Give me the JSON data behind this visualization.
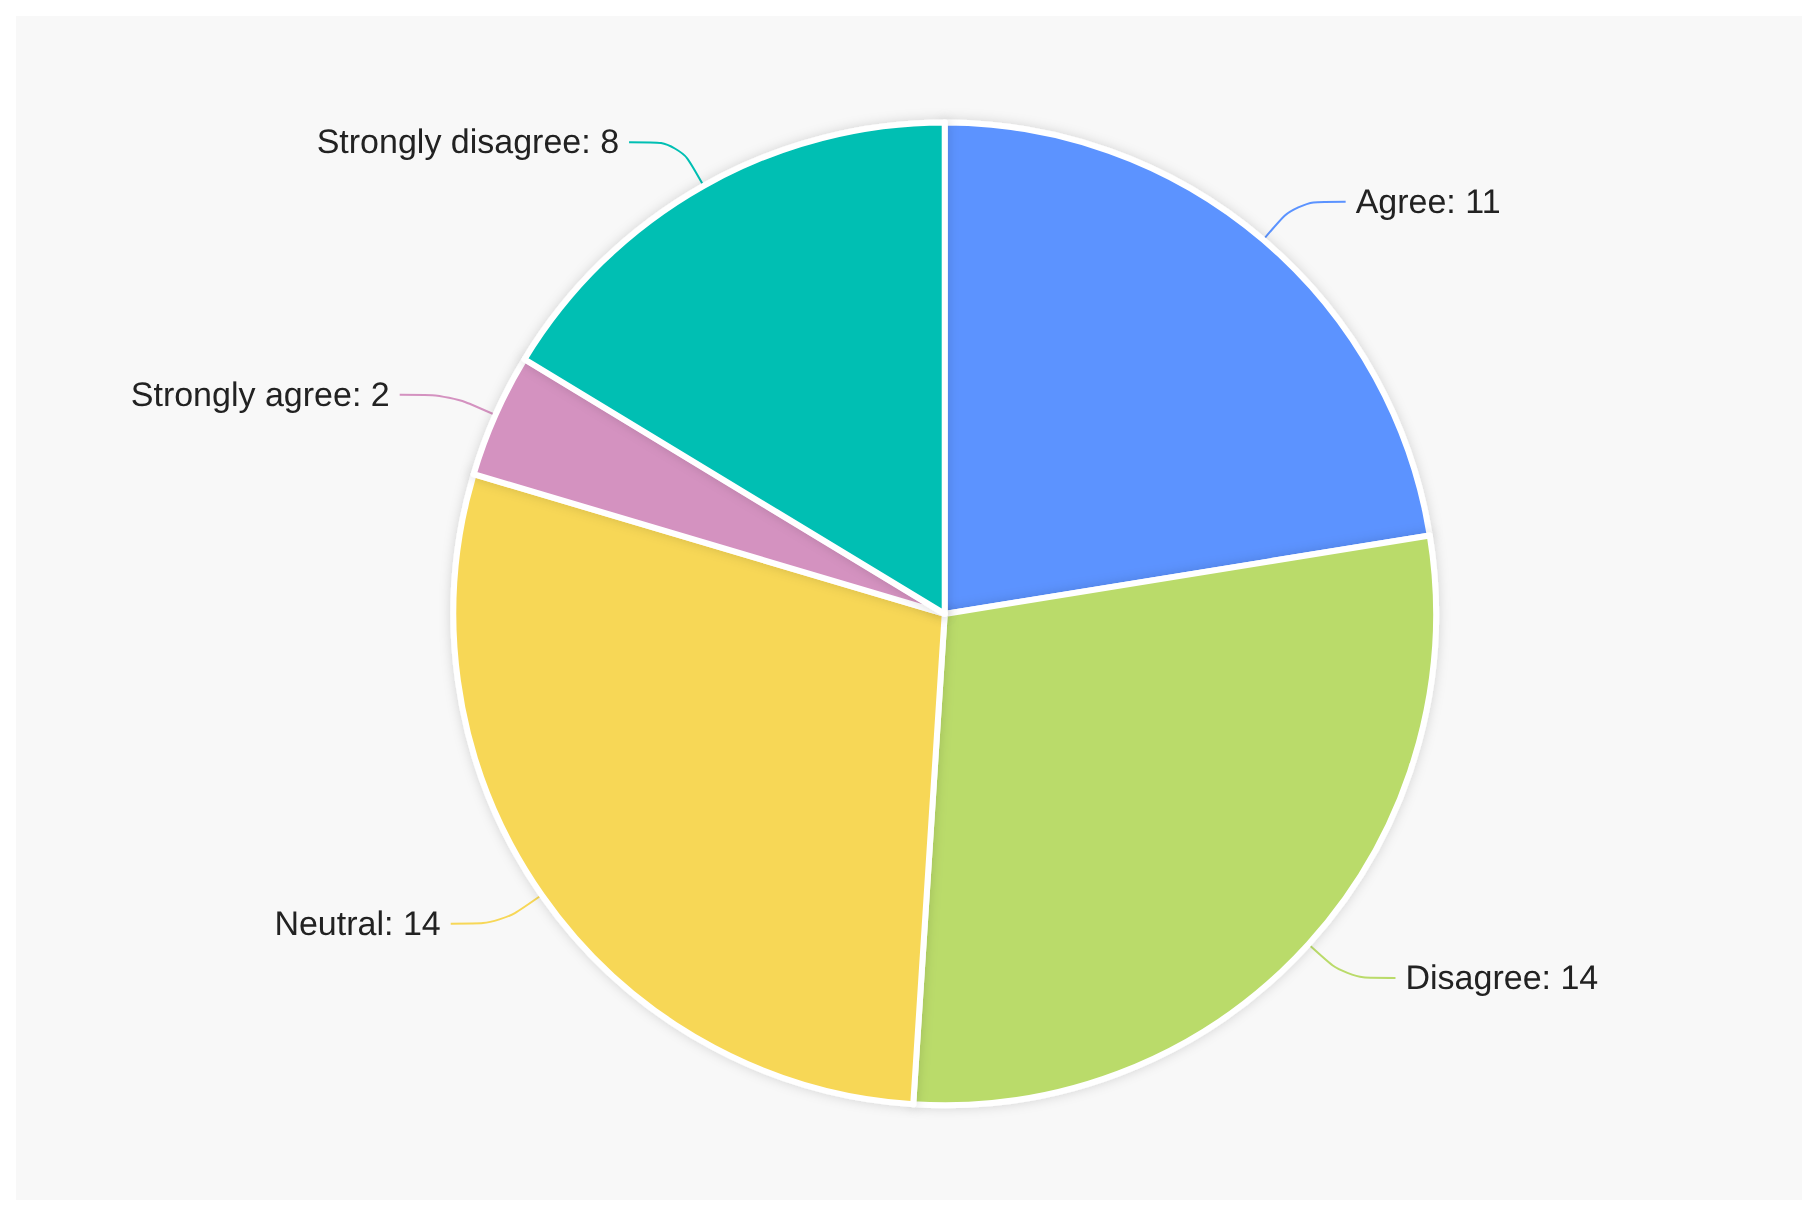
{
  "chart_data": {
    "type": "pie",
    "categories": [
      "Agree",
      "Disagree",
      "Neutral",
      "Strongly agree",
      "Strongly disagree"
    ],
    "values": [
      11,
      14,
      14,
      2,
      8
    ],
    "value_labels": [
      ": 11",
      ": 14",
      ": 14",
      ": 2",
      ": 8"
    ],
    "colors": [
      "#5b93ff",
      "#badb6a",
      "#f7d757",
      "#d492c0",
      "#00bfb3"
    ],
    "legend": false
  }
}
